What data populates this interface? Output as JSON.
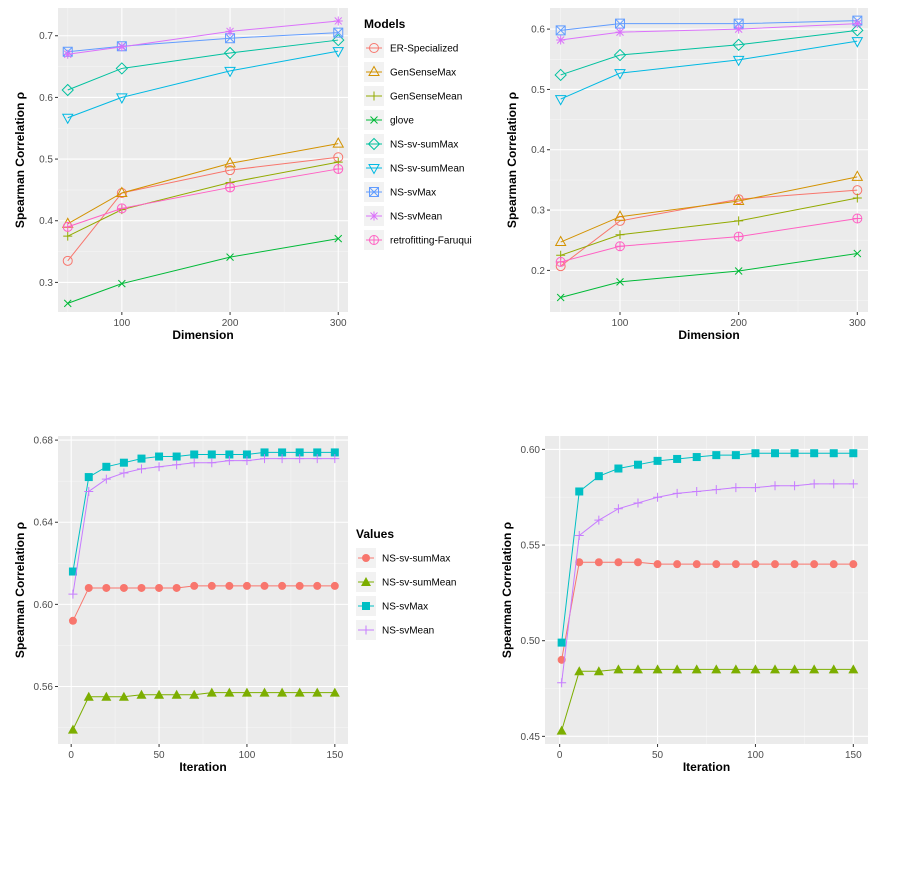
{
  "chart_data": [
    {
      "type": "line",
      "xlabel": "Dimension",
      "ylabel": "Spearman Correlation ρ",
      "x_ticks": [
        100,
        200,
        300
      ],
      "y_ticks": [
        0.3,
        0.4,
        0.5,
        0.6,
        0.7
      ],
      "xlim": [
        41,
        309
      ],
      "ylim": [
        0.252,
        0.745
      ],
      "grid": true,
      "legend_placement": "right",
      "legend_title": "Models",
      "x": [
        50,
        100,
        200,
        300
      ],
      "series": [
        {
          "name": "ER-Specialized",
          "color": "#f8766d",
          "marker": "circle",
          "values": [
            0.335,
            0.445,
            0.482,
            0.503
          ]
        },
        {
          "name": "GenSenseMax",
          "color": "#d39200",
          "marker": "triangle-up",
          "values": [
            0.395,
            0.445,
            0.493,
            0.525
          ]
        },
        {
          "name": "GenSenseMean",
          "color": "#93aa00",
          "marker": "plus",
          "values": [
            0.375,
            0.418,
            0.462,
            0.495
          ]
        },
        {
          "name": "glove",
          "color": "#00ba38",
          "marker": "cross",
          "values": [
            0.266,
            0.298,
            0.341,
            0.371
          ]
        },
        {
          "name": "NS-sv-sumMax",
          "color": "#00c19f",
          "marker": "diamond",
          "values": [
            0.612,
            0.647,
            0.672,
            0.693
          ]
        },
        {
          "name": "NS-sv-sumMean",
          "color": "#00b9e3",
          "marker": "triangle-down",
          "values": [
            0.567,
            0.6,
            0.643,
            0.675
          ]
        },
        {
          "name": "NS-svMax",
          "color": "#619cff",
          "marker": "square-x",
          "values": [
            0.674,
            0.683,
            0.696,
            0.705
          ]
        },
        {
          "name": "NS-svMean",
          "color": "#db72fb",
          "marker": "star",
          "values": [
            0.67,
            0.682,
            0.707,
            0.724
          ]
        },
        {
          "name": "retrofitting-Faruqui",
          "color": "#ff61c3",
          "marker": "circle-plus",
          "values": [
            0.39,
            0.42,
            0.454,
            0.484
          ]
        }
      ]
    },
    {
      "type": "line",
      "xlabel": "Dimension",
      "ylabel": "Spearman Correlation ρ",
      "x_ticks": [
        100,
        200,
        300
      ],
      "y_ticks": [
        0.2,
        0.3,
        0.4,
        0.5,
        0.6
      ],
      "xlim": [
        41,
        309
      ],
      "ylim": [
        0.131,
        0.635
      ],
      "grid": true,
      "x": [
        50,
        100,
        200,
        300
      ],
      "series": [
        {
          "color": "#f8766d",
          "marker": "circle",
          "values": [
            0.207,
            0.282,
            0.318,
            0.333
          ]
        },
        {
          "color": "#d39200",
          "marker": "triangle-up",
          "values": [
            0.247,
            0.289,
            0.315,
            0.355
          ]
        },
        {
          "color": "#93aa00",
          "marker": "plus",
          "values": [
            0.225,
            0.259,
            0.282,
            0.32
          ]
        },
        {
          "color": "#00ba38",
          "marker": "cross",
          "values": [
            0.155,
            0.181,
            0.199,
            0.228
          ]
        },
        {
          "color": "#00c19f",
          "marker": "diamond",
          "values": [
            0.524,
            0.557,
            0.574,
            0.598
          ]
        },
        {
          "color": "#00b9e3",
          "marker": "triangle-down",
          "values": [
            0.484,
            0.527,
            0.549,
            0.58
          ]
        },
        {
          "color": "#619cff",
          "marker": "square-x",
          "values": [
            0.598,
            0.609,
            0.609,
            0.614
          ]
        },
        {
          "color": "#db72fb",
          "marker": "star",
          "values": [
            0.582,
            0.595,
            0.6,
            0.609
          ]
        },
        {
          "color": "#ff61c3",
          "marker": "circle-plus",
          "values": [
            0.214,
            0.24,
            0.256,
            0.286
          ]
        }
      ]
    },
    {
      "type": "line",
      "xlabel": "Iteration",
      "ylabel": "Spearman Correlation ρ",
      "x_ticks": [
        0,
        50,
        100,
        150
      ],
      "y_ticks": [
        0.56,
        0.6,
        0.64,
        0.68
      ],
      "xlim": [
        -7.5,
        157.5
      ],
      "ylim": [
        0.532,
        0.682
      ],
      "grid": true,
      "legend_placement": "right",
      "legend_title": "Values",
      "x": [
        1,
        10,
        20,
        30,
        40,
        50,
        60,
        70,
        80,
        90,
        100,
        110,
        120,
        130,
        140,
        150
      ],
      "series": [
        {
          "name": "NS-sv-sumMax",
          "color": "#f8766d",
          "marker": "filled-circle",
          "values": [
            0.592,
            0.608,
            0.608,
            0.608,
            0.608,
            0.608,
            0.608,
            0.609,
            0.609,
            0.609,
            0.609,
            0.609,
            0.609,
            0.609,
            0.609,
            0.609
          ]
        },
        {
          "name": "NS-sv-sumMean",
          "color": "#7cae00",
          "marker": "filled-triangle",
          "values": [
            0.539,
            0.555,
            0.555,
            0.555,
            0.556,
            0.556,
            0.556,
            0.556,
            0.557,
            0.557,
            0.557,
            0.557,
            0.557,
            0.557,
            0.557,
            0.557
          ]
        },
        {
          "name": "NS-svMax",
          "color": "#00bfc4",
          "marker": "filled-square",
          "values": [
            0.616,
            0.662,
            0.667,
            0.669,
            0.671,
            0.672,
            0.672,
            0.673,
            0.673,
            0.673,
            0.673,
            0.674,
            0.674,
            0.674,
            0.674,
            0.674
          ]
        },
        {
          "name": "NS-svMean",
          "color": "#c77cff",
          "marker": "plus",
          "values": [
            0.605,
            0.655,
            0.661,
            0.664,
            0.666,
            0.667,
            0.668,
            0.669,
            0.669,
            0.67,
            0.67,
            0.671,
            0.671,
            0.671,
            0.671,
            0.671
          ]
        }
      ]
    },
    {
      "type": "line",
      "xlabel": "Iteration",
      "ylabel": "Spearman Correlation ρ",
      "x_ticks": [
        0,
        50,
        100,
        150
      ],
      "y_ticks": [
        0.45,
        0.5,
        0.55,
        0.6
      ],
      "xlim": [
        -7.5,
        157.5
      ],
      "ylim": [
        0.446,
        0.607
      ],
      "grid": true,
      "x": [
        1,
        10,
        20,
        30,
        40,
        50,
        60,
        70,
        80,
        90,
        100,
        110,
        120,
        130,
        140,
        150
      ],
      "series": [
        {
          "color": "#f8766d",
          "marker": "filled-circle",
          "values": [
            0.49,
            0.541,
            0.541,
            0.541,
            0.541,
            0.54,
            0.54,
            0.54,
            0.54,
            0.54,
            0.54,
            0.54,
            0.54,
            0.54,
            0.54,
            0.54
          ]
        },
        {
          "color": "#7cae00",
          "marker": "filled-triangle",
          "values": [
            0.453,
            0.484,
            0.484,
            0.485,
            0.485,
            0.485,
            0.485,
            0.485,
            0.485,
            0.485,
            0.485,
            0.485,
            0.485,
            0.485,
            0.485,
            0.485
          ]
        },
        {
          "color": "#00bfc4",
          "marker": "filled-square",
          "values": [
            0.499,
            0.578,
            0.586,
            0.59,
            0.592,
            0.594,
            0.595,
            0.596,
            0.597,
            0.597,
            0.598,
            0.598,
            0.598,
            0.598,
            0.598,
            0.598
          ]
        },
        {
          "color": "#c77cff",
          "marker": "plus",
          "values": [
            0.478,
            0.555,
            0.563,
            0.569,
            0.572,
            0.575,
            0.577,
            0.578,
            0.579,
            0.58,
            0.58,
            0.581,
            0.581,
            0.582,
            0.582,
            0.582
          ]
        }
      ]
    }
  ]
}
